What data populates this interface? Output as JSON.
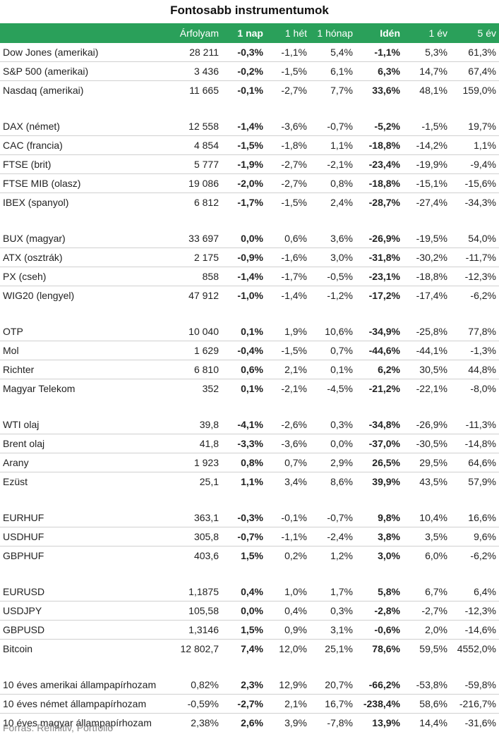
{
  "title": "Fontosabb instrumentumok",
  "colors": {
    "header_bg": "#2aa05a",
    "header_text": "#ffffff",
    "row_divider": "#d0d0d0"
  },
  "columns": [
    "",
    "Árfolyam",
    "1 nap",
    "1 hét",
    "1 hónap",
    "Idén",
    "1 év",
    "5 év"
  ],
  "groups": [
    [
      [
        "Dow Jones (amerikai)",
        "28 211",
        "-0,3%",
        "-1,1%",
        "5,4%",
        "-1,1%",
        "5,3%",
        "61,3%"
      ],
      [
        "S&P 500 (amerikai)",
        "3 436",
        "-0,2%",
        "-1,5%",
        "6,1%",
        "6,3%",
        "14,7%",
        "67,4%"
      ],
      [
        "Nasdaq (amerikai)",
        "11 665",
        "-0,1%",
        "-2,7%",
        "7,7%",
        "33,6%",
        "48,1%",
        "159,0%"
      ]
    ],
    [
      [
        "DAX (német)",
        "12 558",
        "-1,4%",
        "-3,6%",
        "-0,7%",
        "-5,2%",
        "-1,5%",
        "19,7%"
      ],
      [
        "CAC (francia)",
        "4 854",
        "-1,5%",
        "-1,8%",
        "1,1%",
        "-18,8%",
        "-14,2%",
        "1,1%"
      ],
      [
        "FTSE (brit)",
        "5 777",
        "-1,9%",
        "-2,7%",
        "-2,1%",
        "-23,4%",
        "-19,9%",
        "-9,4%"
      ],
      [
        "FTSE MIB (olasz)",
        "19 086",
        "-2,0%",
        "-2,7%",
        "0,8%",
        "-18,8%",
        "-15,1%",
        "-15,6%"
      ],
      [
        "IBEX (spanyol)",
        "6 812",
        "-1,7%",
        "-1,5%",
        "2,4%",
        "-28,7%",
        "-27,4%",
        "-34,3%"
      ]
    ],
    [
      [
        "BUX (magyar)",
        "33 697",
        "0,0%",
        "0,6%",
        "3,6%",
        "-26,9%",
        "-19,5%",
        "54,0%"
      ],
      [
        "ATX (osztrák)",
        "2 175",
        "-0,9%",
        "-1,6%",
        "3,0%",
        "-31,8%",
        "-30,2%",
        "-11,7%"
      ],
      [
        "PX (cseh)",
        "858",
        "-1,4%",
        "-1,7%",
        "-0,5%",
        "-23,1%",
        "-18,8%",
        "-12,3%"
      ],
      [
        "WIG20 (lengyel)",
        "47 912",
        "-1,0%",
        "-1,4%",
        "-1,2%",
        "-17,2%",
        "-17,4%",
        "-6,2%"
      ]
    ],
    [
      [
        "OTP",
        "10 040",
        "0,1%",
        "1,9%",
        "10,6%",
        "-34,9%",
        "-25,8%",
        "77,8%"
      ],
      [
        "Mol",
        "1 629",
        "-0,4%",
        "-1,5%",
        "0,7%",
        "-44,6%",
        "-44,1%",
        "-1,3%"
      ],
      [
        "Richter",
        "6 810",
        "0,6%",
        "2,1%",
        "0,1%",
        "6,2%",
        "30,5%",
        "44,8%"
      ],
      [
        "Magyar Telekom",
        "352",
        "0,1%",
        "-2,1%",
        "-4,5%",
        "-21,2%",
        "-22,1%",
        "-8,0%"
      ]
    ],
    [
      [
        "WTI olaj",
        "39,8",
        "-4,1%",
        "-2,6%",
        "0,3%",
        "-34,8%",
        "-26,9%",
        "-11,3%"
      ],
      [
        "Brent olaj",
        "41,8",
        "-3,3%",
        "-3,6%",
        "0,0%",
        "-37,0%",
        "-30,5%",
        "-14,8%"
      ],
      [
        "Arany",
        "1 923",
        "0,8%",
        "0,7%",
        "2,9%",
        "26,5%",
        "29,5%",
        "64,6%"
      ],
      [
        "Ezüst",
        "25,1",
        "1,1%",
        "3,4%",
        "8,6%",
        "39,9%",
        "43,5%",
        "57,9%"
      ]
    ],
    [
      [
        "EURHUF",
        "363,1",
        "-0,3%",
        "-0,1%",
        "-0,7%",
        "9,8%",
        "10,4%",
        "16,6%"
      ],
      [
        "USDHUF",
        "305,8",
        "-0,7%",
        "-1,1%",
        "-2,4%",
        "3,8%",
        "3,5%",
        "9,6%"
      ],
      [
        "GBPHUF",
        "403,6",
        "1,5%",
        "0,2%",
        "1,2%",
        "3,0%",
        "6,0%",
        "-6,2%"
      ]
    ],
    [
      [
        "EURUSD",
        "1,1875",
        "0,4%",
        "1,0%",
        "1,7%",
        "5,8%",
        "6,7%",
        "6,4%"
      ],
      [
        "USDJPY",
        "105,58",
        "0,0%",
        "0,4%",
        "0,3%",
        "-2,8%",
        "-2,7%",
        "-12,3%"
      ],
      [
        "GBPUSD",
        "1,3146",
        "1,5%",
        "0,9%",
        "3,1%",
        "-0,6%",
        "2,0%",
        "-14,6%"
      ],
      [
        "Bitcoin",
        "12 802,7",
        "7,4%",
        "12,0%",
        "25,1%",
        "78,6%",
        "59,5%",
        "4552,0%"
      ]
    ],
    [
      [
        "10 éves amerikai állampapírhozam",
        "0,82%",
        "2,3%",
        "12,9%",
        "20,7%",
        "-66,2%",
        "-53,8%",
        "-59,8%"
      ],
      [
        "10 éves német állampapírhozam",
        "-0,59%",
        "-2,7%",
        "2,1%",
        "16,7%",
        "-238,4%",
        "58,6%",
        "-216,7%"
      ],
      [
        "10 éves magyar állampapírhozam",
        "2,38%",
        "2,6%",
        "3,9%",
        "-7,8%",
        "13,9%",
        "14,4%",
        "-31,6%"
      ]
    ]
  ],
  "source": "Forrás: Refinitiv, Portfolio"
}
